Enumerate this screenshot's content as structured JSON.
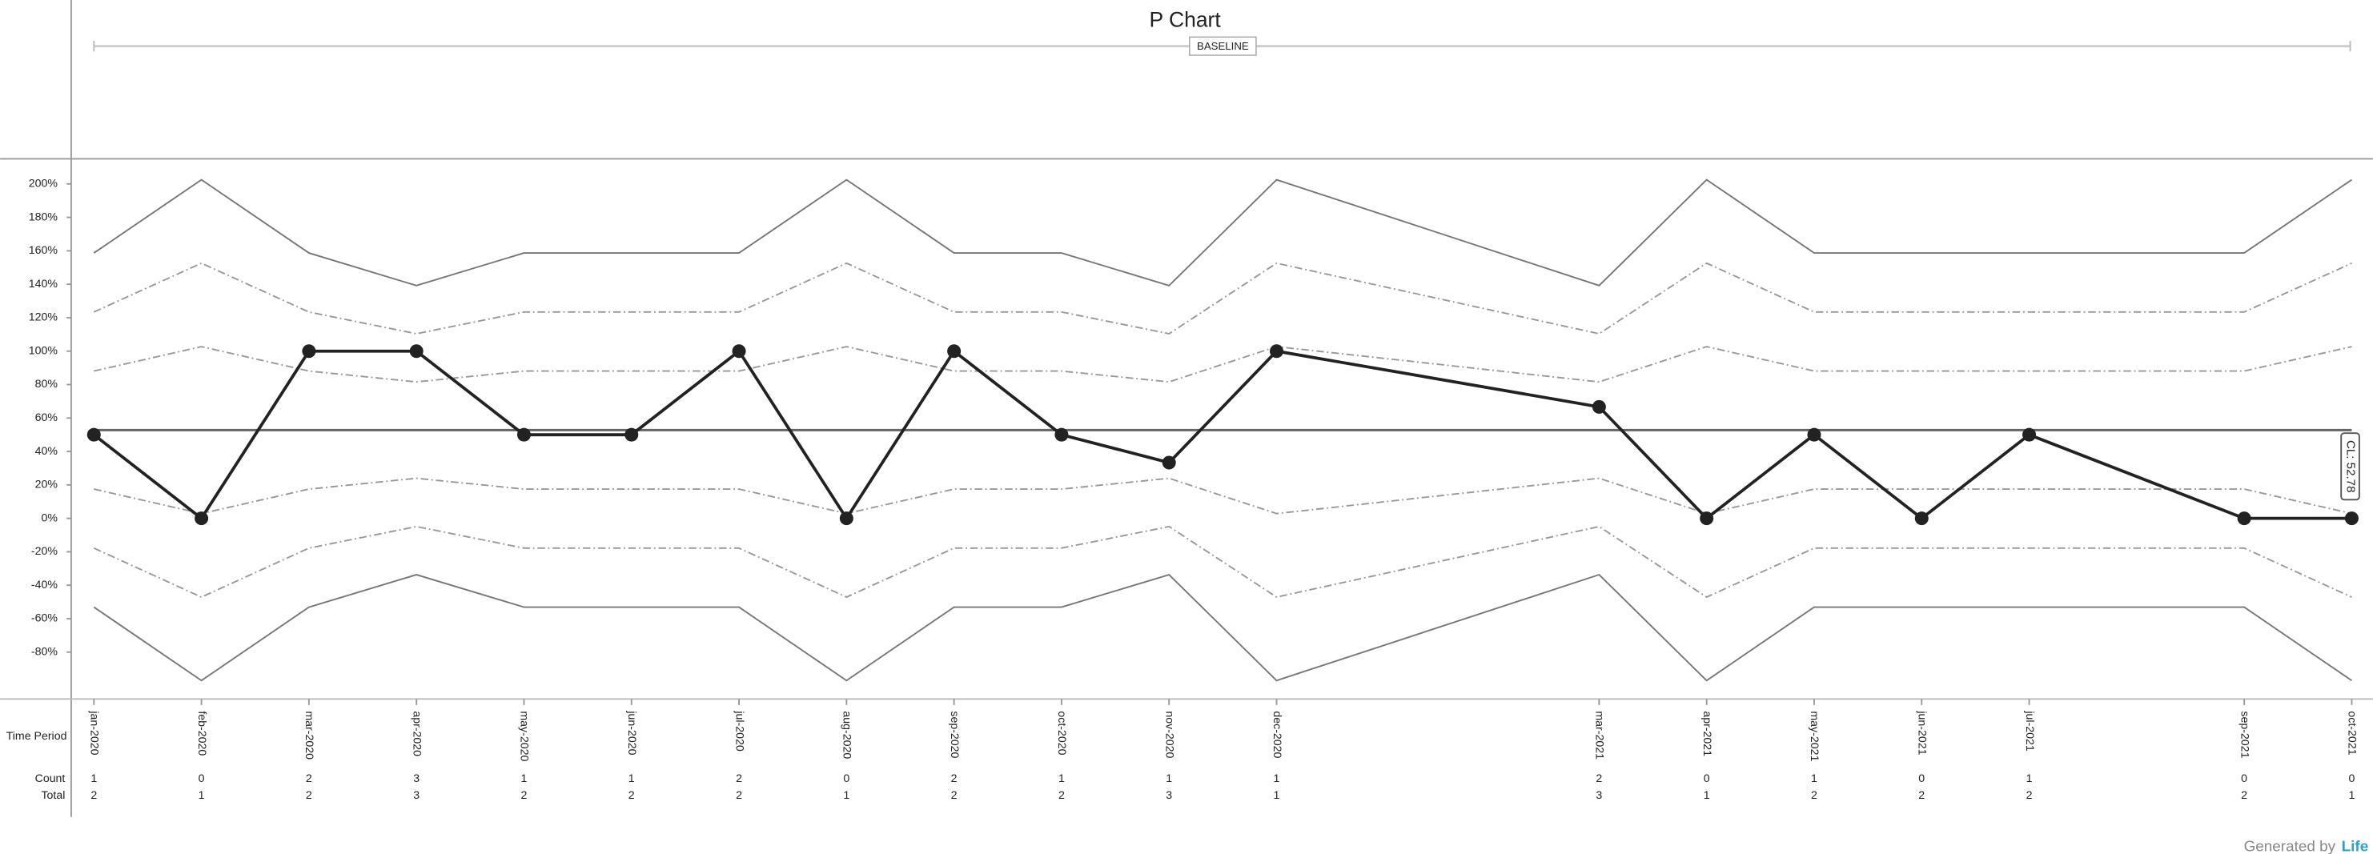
{
  "chart_data": {
    "type": "line",
    "title": "P Chart",
    "baseline_button": "BASELINE",
    "x": [
      "jan-2020",
      "feb-2020",
      "mar-2020",
      "apr-2020",
      "may-2020",
      "jun-2020",
      "jul-2020",
      "aug-2020",
      "sep-2020",
      "oct-2020",
      "nov-2020",
      "dec-2020",
      "mar-2021",
      "apr-2021",
      "may-2021",
      "jun-2021",
      "jul-2021",
      "sep-2021",
      "oct-2021"
    ],
    "values": [
      50,
      0,
      100,
      100,
      50,
      50,
      100,
      0,
      100,
      50,
      33.33,
      100,
      66.67,
      0,
      50,
      0,
      50,
      0,
      0
    ],
    "color": "#222222",
    "counts": [
      1,
      0,
      2,
      3,
      1,
      1,
      2,
      0,
      2,
      1,
      1,
      1,
      2,
      0,
      1,
      0,
      1,
      0,
      0
    ],
    "totals": [
      2,
      1,
      2,
      3,
      2,
      2,
      2,
      1,
      2,
      2,
      3,
      1,
      3,
      1,
      2,
      2,
      2,
      2,
      1
    ],
    "center_line": {
      "value": 52.78,
      "label": "CL: 52.78"
    },
    "limits": {
      "ucl": [
        158.7,
        202.5,
        158.7,
        139.2,
        158.7,
        158.7,
        158.7,
        202.5,
        158.7,
        158.7,
        139.2,
        202.5,
        139.2,
        202.5,
        158.7,
        158.7,
        158.7,
        158.7,
        202.5
      ],
      "upper_2sigma": [
        123.4,
        152.6,
        123.4,
        110.4,
        123.4,
        123.4,
        123.4,
        152.6,
        123.4,
        123.4,
        110.4,
        152.6,
        110.4,
        152.6,
        123.4,
        123.4,
        123.4,
        123.4,
        152.6
      ],
      "upper_1sigma": [
        88.1,
        102.7,
        88.1,
        81.6,
        88.1,
        88.1,
        88.1,
        102.7,
        88.1,
        88.1,
        81.6,
        102.7,
        81.6,
        102.7,
        88.1,
        88.1,
        88.1,
        88.1,
        102.7
      ],
      "lower_1sigma": [
        17.5,
        2.86,
        17.5,
        23.96,
        17.5,
        17.5,
        17.5,
        2.86,
        17.5,
        17.5,
        23.96,
        2.86,
        23.96,
        2.86,
        17.5,
        17.5,
        17.5,
        17.5,
        2.86
      ],
      "lower_2sigma": [
        -17.8,
        -47.1,
        -17.8,
        -4.9,
        -17.8,
        -17.8,
        -17.8,
        -47.1,
        -17.8,
        -17.8,
        -4.9,
        -47.1,
        -4.9,
        -47.1,
        -17.8,
        -17.8,
        -17.8,
        -17.8,
        -47.1
      ],
      "lcl": [
        -53.1,
        -97,
        -53.1,
        -33.7,
        -53.1,
        -53.1,
        -53.1,
        -97,
        -53.1,
        -53.1,
        -33.7,
        -97,
        -33.7,
        -97,
        -53.1,
        -53.1,
        -53.1,
        -53.1,
        -97
      ]
    },
    "ylim": [
      -108,
      215
    ],
    "yticks": [
      {
        "value": 200,
        "label": "200%"
      },
      {
        "value": 180,
        "label": "180%"
      },
      {
        "value": 160,
        "label": "160%"
      },
      {
        "value": 140,
        "label": "140%"
      },
      {
        "value": 120,
        "label": "120%"
      },
      {
        "value": 100,
        "label": "100%"
      },
      {
        "value": 80,
        "label": "80%"
      },
      {
        "value": 60,
        "label": "60%"
      },
      {
        "value": 40,
        "label": "40%"
      },
      {
        "value": 20,
        "label": "20%"
      },
      {
        "value": 0,
        "label": "0%"
      },
      {
        "value": -20,
        "label": "-20%"
      },
      {
        "value": -40,
        "label": "-40%"
      },
      {
        "value": -60,
        "label": "-60%"
      },
      {
        "value": -80,
        "label": "-80%"
      }
    ],
    "x_label": "Time Period",
    "count_label": "Count",
    "total_label": "Total",
    "footer": "Generated by",
    "brand": "Life"
  }
}
